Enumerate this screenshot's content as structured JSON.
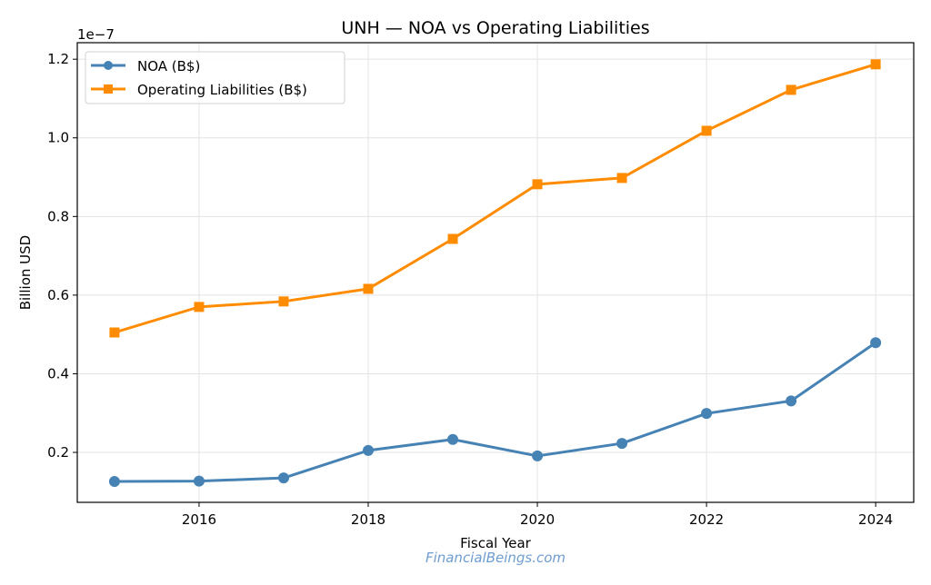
{
  "chart_data": {
    "type": "line",
    "title": "UNH — NOA vs Operating Liabilities",
    "xlabel": "Fiscal Year",
    "ylabel": "Billion USD",
    "y_offset_text": "1e−7",
    "x": [
      2015,
      2016,
      2017,
      2018,
      2019,
      2020,
      2021,
      2022,
      2023,
      2024
    ],
    "xlim": [
      2014.56,
      2024.45
    ],
    "ylim": [
      0.073,
      1.242
    ],
    "x_ticks": [
      2016,
      2018,
      2020,
      2022,
      2024
    ],
    "x_tick_labels": [
      "2016",
      "2018",
      "2020",
      "2022",
      "2024"
    ],
    "y_ticks": [
      0.2,
      0.4,
      0.6,
      0.8,
      1.0,
      1.2
    ],
    "y_tick_labels": [
      "0.2",
      "0.4",
      "0.6",
      "0.8",
      "1.0",
      "1.2"
    ],
    "grid": true,
    "legend_position": "top-left",
    "series": [
      {
        "name": "NOA (B$)",
        "color": "#4682b4",
        "marker": "circle",
        "values": [
          0.126,
          0.127,
          0.135,
          0.205,
          0.233,
          0.191,
          0.223,
          0.299,
          0.331,
          0.479
        ]
      },
      {
        "name": "Operating Liabilities (B$)",
        "color": "#ff8c00",
        "marker": "square",
        "values": [
          0.505,
          0.57,
          0.584,
          0.616,
          0.743,
          0.882,
          0.898,
          1.018,
          1.122,
          1.187
        ]
      }
    ]
  },
  "watermark": "FinancialBeings.com"
}
